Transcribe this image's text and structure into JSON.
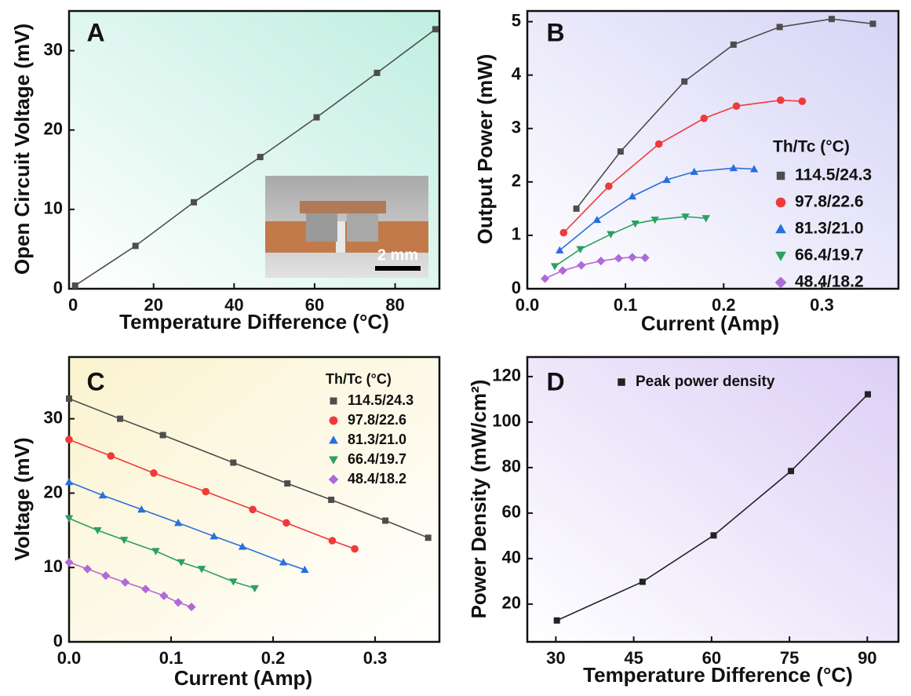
{
  "chart_data": [
    {
      "type": "line",
      "panel": "A",
      "x_label": "Temperature Difference (°C)",
      "y_label": "Open Circuit Voltage (mV)",
      "x": [
        0.5,
        15.5,
        30,
        46.5,
        60.5,
        75.5,
        90
      ],
      "values": [
        0.4,
        5.4,
        10.9,
        16.6,
        21.6,
        27.2,
        32.7
      ],
      "color": "#4d4d4d",
      "marker": "square",
      "xlim": [
        -1,
        91
      ],
      "ylim": [
        0,
        35
      ],
      "xticks": [
        0,
        20,
        40,
        60,
        80
      ],
      "yticks": [
        0,
        10,
        20,
        30
      ],
      "annotations": [
        "2 mm"
      ]
    },
    {
      "type": "line",
      "panel": "B",
      "x_label": "Current (Amp)",
      "y_label": "Output Power (mW)",
      "legend_title": "Th/Tc (°C)",
      "legend": "right",
      "series": [
        {
          "name": "114.5/24.3",
          "color": "#4d4d4d",
          "marker": "square",
          "x": [
            0.05,
            0.095,
            0.16,
            0.21,
            0.257,
            0.31,
            0.352
          ],
          "values": [
            1.5,
            2.57,
            3.88,
            4.57,
            4.9,
            5.05,
            4.96
          ]
        },
        {
          "name": "97.8/22.6",
          "color": "#f03a3a",
          "marker": "circle",
          "x": [
            0.037,
            0.083,
            0.134,
            0.18,
            0.213,
            0.258,
            0.28
          ],
          "values": [
            1.05,
            1.92,
            2.71,
            3.19,
            3.42,
            3.53,
            3.51
          ]
        },
        {
          "name": "81.3/21.0",
          "color": "#2a6fdb",
          "marker": "triangle-up",
          "x": [
            0.033,
            0.071,
            0.107,
            0.142,
            0.17,
            0.21,
            0.231
          ],
          "values": [
            0.72,
            1.29,
            1.73,
            2.04,
            2.19,
            2.26,
            2.24
          ]
        },
        {
          "name": "66.4/19.7",
          "color": "#2ca060",
          "marker": "triangle-down",
          "x": [
            0.028,
            0.054,
            0.085,
            0.11,
            0.13,
            0.161,
            0.182
          ],
          "values": [
            0.42,
            0.74,
            1.02,
            1.22,
            1.29,
            1.35,
            1.32
          ]
        },
        {
          "name": "48.4/18.2",
          "color": "#b06ad8",
          "marker": "diamond",
          "x": [
            0.018,
            0.036,
            0.055,
            0.075,
            0.093,
            0.107,
            0.12
          ],
          "values": [
            0.19,
            0.34,
            0.44,
            0.52,
            0.57,
            0.59,
            0.58
          ]
        }
      ],
      "xlim": [
        0,
        0.378
      ],
      "ylim": [
        0,
        5.2
      ],
      "xticks": [
        {
          "value": 0,
          "label": "0.0"
        },
        0.1,
        0.2,
        0.3
      ],
      "yticks": [
        0,
        1,
        2,
        3,
        4,
        5
      ]
    },
    {
      "type": "line",
      "panel": "C",
      "x_label": "Current (Amp)",
      "y_label": "Voltage (mV)",
      "legend_title": "Th/Tc (°C)",
      "legend": "upper right",
      "series": [
        {
          "name": "114.5/24.3",
          "color": "#4d4d4d",
          "marker": "square",
          "x": [
            0,
            0.05,
            0.092,
            0.161,
            0.214,
            0.257,
            0.31,
            0.352
          ],
          "values": [
            32.7,
            30.0,
            27.8,
            24.1,
            21.3,
            19.1,
            16.3,
            14.0
          ]
        },
        {
          "name": "97.8/22.6",
          "color": "#f03a3a",
          "marker": "circle",
          "x": [
            0,
            0.041,
            0.083,
            0.134,
            0.18,
            0.213,
            0.258,
            0.28
          ],
          "values": [
            27.2,
            25.0,
            22.7,
            20.2,
            17.8,
            16.0,
            13.6,
            12.5
          ]
        },
        {
          "name": "81.3/21.0",
          "color": "#2a6fdb",
          "marker": "triangle-up",
          "x": [
            0,
            0.033,
            0.071,
            0.107,
            0.142,
            0.17,
            0.21,
            0.231
          ],
          "values": [
            21.5,
            19.7,
            17.8,
            16.0,
            14.2,
            12.8,
            10.7,
            9.7
          ]
        },
        {
          "name": "66.4/19.7",
          "color": "#2ca060",
          "marker": "triangle-down",
          "x": [
            0,
            0.028,
            0.054,
            0.085,
            0.11,
            0.13,
            0.161,
            0.182
          ],
          "values": [
            16.6,
            15.0,
            13.7,
            12.2,
            10.7,
            9.8,
            8.1,
            7.2
          ]
        },
        {
          "name": "48.4/18.2",
          "color": "#b06ad8",
          "marker": "diamond",
          "x": [
            0,
            0.018,
            0.036,
            0.055,
            0.075,
            0.093,
            0.107,
            0.12
          ],
          "values": [
            10.7,
            9.8,
            8.9,
            8.0,
            7.1,
            6.2,
            5.3,
            4.7
          ]
        }
      ],
      "xlim": [
        0,
        0.363
      ],
      "ylim": [
        0,
        38.3
      ],
      "xticks": [
        {
          "value": 0,
          "label": "0.0"
        },
        0.1,
        0.2,
        0.3
      ],
      "yticks": [
        0,
        10,
        20,
        30
      ]
    },
    {
      "type": "line",
      "panel": "D",
      "x_label": "Temperature Difference (°C)",
      "y_label": "Power Density (mW/cm²)",
      "legend": "upper left",
      "series": [
        {
          "name": "Peak power density",
          "color": "#222222",
          "marker": "square",
          "x": [
            30.2,
            46.7,
            60.4,
            75.3,
            90.1
          ],
          "values": [
            12.8,
            29.8,
            50.2,
            78.5,
            112.2
          ]
        }
      ],
      "xlim": [
        24.5,
        96
      ],
      "ylim": [
        3.4,
        128.6
      ],
      "xticks": [
        30,
        45,
        60,
        75,
        90
      ],
      "yticks": [
        20,
        40,
        60,
        80,
        100,
        120
      ]
    }
  ]
}
